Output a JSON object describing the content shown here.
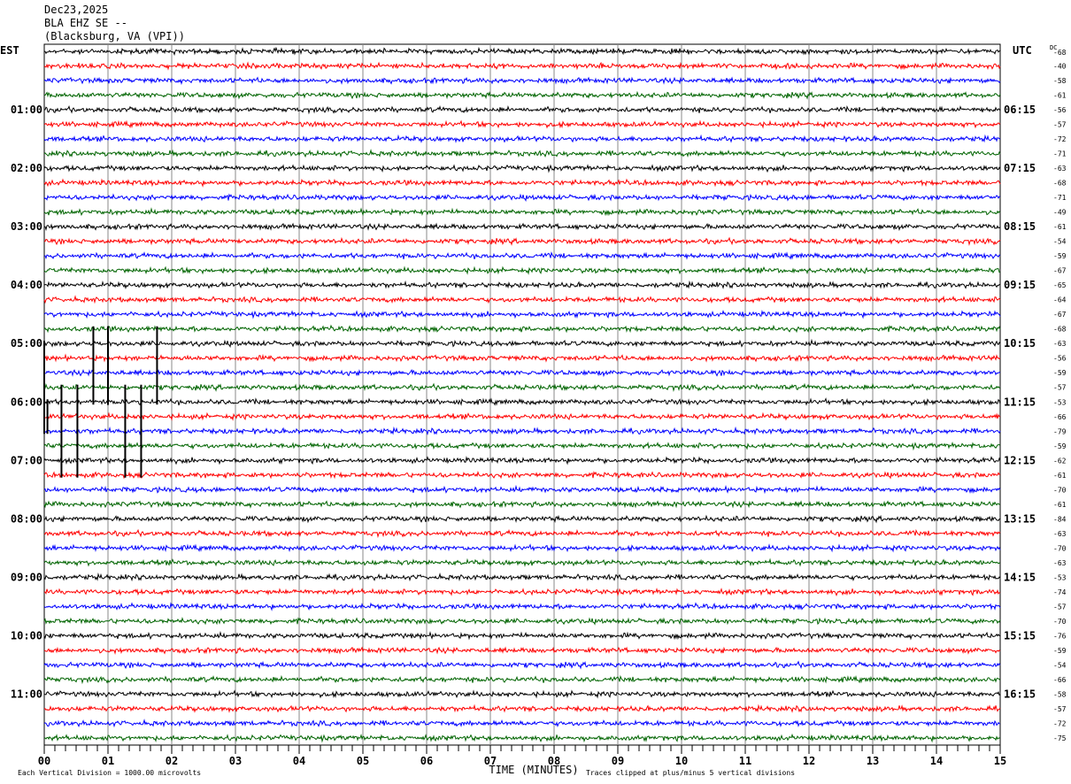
{
  "header": {
    "date": "Dec23,2025",
    "station": "BLA EHZ SE --",
    "location": "(Blacksburg, VA (VPI))"
  },
  "chart_data": {
    "type": "line",
    "title": "",
    "left_axis_label": "EST",
    "right_axis_label": "UTC",
    "dc_label": "DC",
    "xlabel": "TIME (MINUTES)",
    "xlim": [
      0,
      15
    ],
    "x_tick_labels": [
      "00",
      "01",
      "02",
      "03",
      "04",
      "05",
      "06",
      "07",
      "08",
      "09",
      "10",
      "11",
      "12",
      "13",
      "14",
      "15"
    ],
    "est_hour_labels": [
      "01:00",
      "02:00",
      "03:00",
      "04:00",
      "05:00",
      "06:00",
      "07:00",
      "08:00",
      "09:00",
      "10:00",
      "11:00"
    ],
    "utc_hour_labels": [
      "06:15",
      "07:15",
      "08:15",
      "09:15",
      "10:15",
      "11:15",
      "12:15",
      "13:15",
      "14:15",
      "15:15",
      "16:15"
    ],
    "trace_minutes_per_row": 15,
    "trace_colors": [
      "#000000",
      "#ff0000",
      "#0000ff",
      "#006400"
    ],
    "dc_offsets": [
      -68,
      -40,
      -58,
      -61,
      -56,
      -57,
      -72,
      -71,
      -63,
      -68,
      -71,
      -49,
      -61,
      -54,
      -59,
      -67,
      -65,
      -64,
      -67,
      -68,
      -63,
      -56,
      -59,
      -57,
      -53,
      -66,
      -79,
      -59,
      -62,
      -61,
      -70,
      -61,
      -84,
      -63,
      -70,
      -63,
      -53,
      -74,
      -57,
      -70,
      -76,
      -59,
      -54,
      -66,
      -58,
      -57,
      -72,
      -75
    ],
    "grid": true,
    "footer_left": "Each Vertical Division = 1000.00 microvolts",
    "footer_right": "Traces clipped at plus/minus 5 vertical divisions"
  }
}
